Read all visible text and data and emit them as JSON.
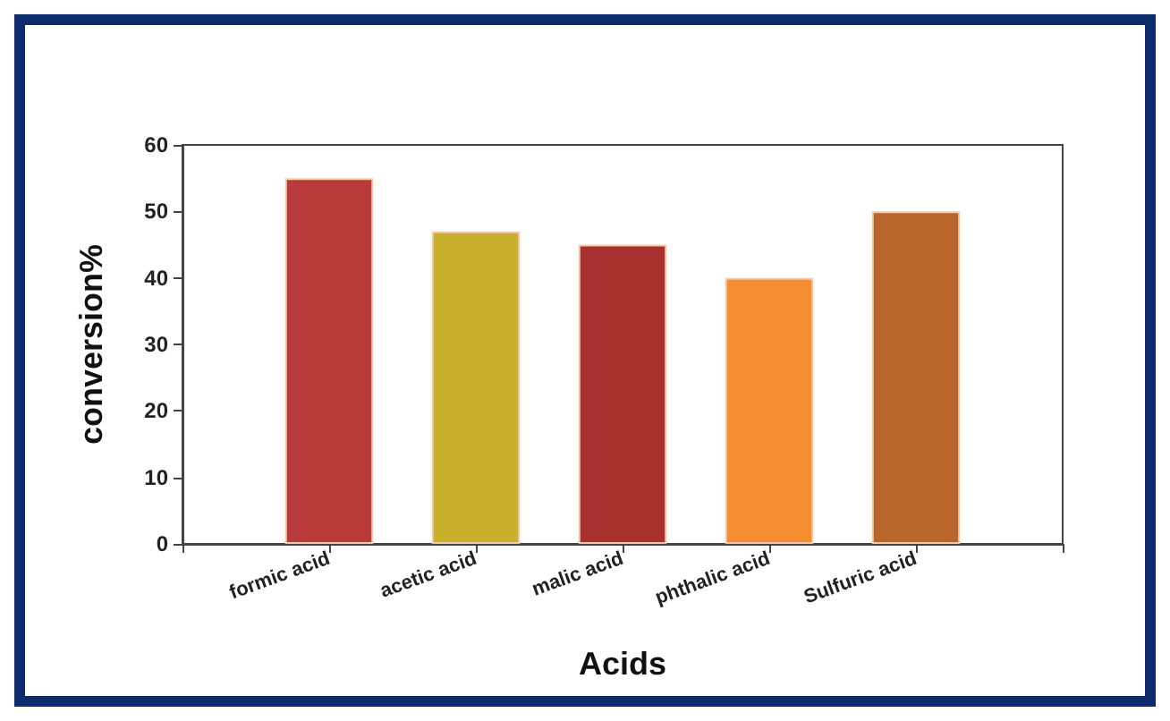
{
  "chart_data": {
    "type": "bar",
    "categories": [
      "formic acid",
      "acetic acid",
      "malic acid",
      "phthalic acid",
      "Sulfuric acid"
    ],
    "values": [
      55,
      47,
      45,
      40,
      50
    ],
    "colors": [
      "#b83a3a",
      "#c9b02c",
      "#a8302e",
      "#f48e30",
      "#b8662c"
    ],
    "xlabel": "Acids",
    "ylabel": "conversion%",
    "ylim": [
      0,
      60
    ],
    "yticks": [
      0,
      10,
      20,
      30,
      40,
      50,
      60
    ],
    "grid": false
  }
}
